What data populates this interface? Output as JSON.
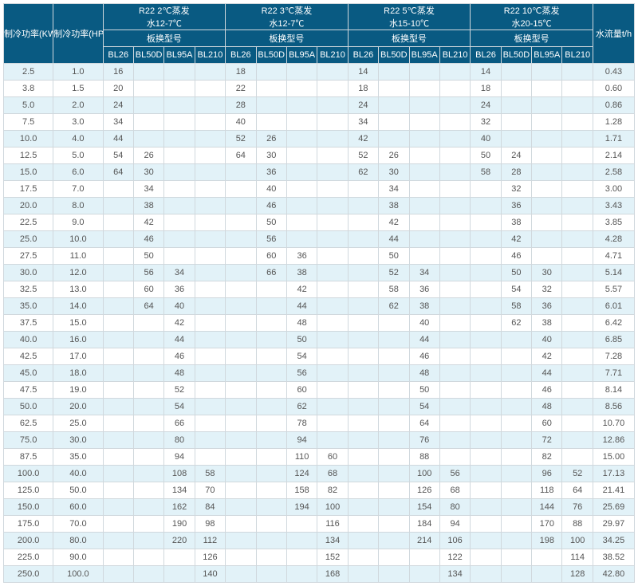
{
  "header": {
    "kw_label": "制冷功率(KW)",
    "hp_label": "制冷功率(HP)",
    "flow_label": "水流量t/h",
    "model_row_label": "板换型号",
    "groups": [
      {
        "line1": "R22 2℃蒸发",
        "line2": "水12-7℃"
      },
      {
        "line1": "R22 3℃蒸发",
        "line2": "水12-7℃"
      },
      {
        "line1": "R22 5℃蒸发",
        "line2": "水15-10℃"
      },
      {
        "line1": "R22 10℃蒸发",
        "line2": "水20-15℃"
      }
    ],
    "model_cols": [
      "BL26",
      "BL50D",
      "BL95A",
      "BL210"
    ]
  },
  "rows": [
    {
      "kw": "2.5",
      "hp": "1.0",
      "g": [
        [
          "16",
          "",
          "",
          ""
        ],
        [
          "18",
          "",
          "",
          ""
        ],
        [
          "14",
          "",
          "",
          ""
        ],
        [
          "14",
          "",
          "",
          ""
        ]
      ],
      "flow": "0.43"
    },
    {
      "kw": "3.8",
      "hp": "1.5",
      "g": [
        [
          "20",
          "",
          "",
          ""
        ],
        [
          "22",
          "",
          "",
          ""
        ],
        [
          "18",
          "",
          "",
          ""
        ],
        [
          "18",
          "",
          "",
          ""
        ]
      ],
      "flow": "0.60"
    },
    {
      "kw": "5.0",
      "hp": "2.0",
      "g": [
        [
          "24",
          "",
          "",
          ""
        ],
        [
          "28",
          "",
          "",
          ""
        ],
        [
          "24",
          "",
          "",
          ""
        ],
        [
          "24",
          "",
          "",
          ""
        ]
      ],
      "flow": "0.86"
    },
    {
      "kw": "7.5",
      "hp": "3.0",
      "g": [
        [
          "34",
          "",
          "",
          ""
        ],
        [
          "40",
          "",
          "",
          ""
        ],
        [
          "34",
          "",
          "",
          ""
        ],
        [
          "32",
          "",
          "",
          ""
        ]
      ],
      "flow": "1.28"
    },
    {
      "kw": "10.0",
      "hp": "4.0",
      "g": [
        [
          "44",
          "",
          "",
          ""
        ],
        [
          "52",
          "26",
          "",
          ""
        ],
        [
          "42",
          "",
          "",
          ""
        ],
        [
          "40",
          "",
          "",
          ""
        ]
      ],
      "flow": "1.71"
    },
    {
      "kw": "12.5",
      "hp": "5.0",
      "g": [
        [
          "54",
          "26",
          "",
          ""
        ],
        [
          "64",
          "30",
          "",
          ""
        ],
        [
          "52",
          "26",
          "",
          ""
        ],
        [
          "50",
          "24",
          "",
          ""
        ]
      ],
      "flow": "2.14"
    },
    {
      "kw": "15.0",
      "hp": "6.0",
      "g": [
        [
          "64",
          "30",
          "",
          ""
        ],
        [
          "",
          "36",
          "",
          ""
        ],
        [
          "62",
          "30",
          "",
          ""
        ],
        [
          "58",
          "28",
          "",
          ""
        ]
      ],
      "flow": "2.58"
    },
    {
      "kw": "17.5",
      "hp": "7.0",
      "g": [
        [
          "",
          "34",
          "",
          ""
        ],
        [
          "",
          "40",
          "",
          ""
        ],
        [
          "",
          "34",
          "",
          ""
        ],
        [
          "",
          "32",
          "",
          ""
        ]
      ],
      "flow": "3.00"
    },
    {
      "kw": "20.0",
      "hp": "8.0",
      "g": [
        [
          "",
          "38",
          "",
          ""
        ],
        [
          "",
          "46",
          "",
          ""
        ],
        [
          "",
          "38",
          "",
          ""
        ],
        [
          "",
          "36",
          "",
          ""
        ]
      ],
      "flow": "3.43"
    },
    {
      "kw": "22.5",
      "hp": "9.0",
      "g": [
        [
          "",
          "42",
          "",
          ""
        ],
        [
          "",
          "50",
          "",
          ""
        ],
        [
          "",
          "42",
          "",
          ""
        ],
        [
          "",
          "38",
          "",
          ""
        ]
      ],
      "flow": "3.85"
    },
    {
      "kw": "25.0",
      "hp": "10.0",
      "g": [
        [
          "",
          "46",
          "",
          ""
        ],
        [
          "",
          "56",
          "",
          ""
        ],
        [
          "",
          "44",
          "",
          ""
        ],
        [
          "",
          "42",
          "",
          ""
        ]
      ],
      "flow": "4.28"
    },
    {
      "kw": "27.5",
      "hp": "11.0",
      "g": [
        [
          "",
          "50",
          "",
          ""
        ],
        [
          "",
          "60",
          "36",
          ""
        ],
        [
          "",
          "50",
          "",
          ""
        ],
        [
          "",
          "46",
          "",
          ""
        ]
      ],
      "flow": "4.71"
    },
    {
      "kw": "30.0",
      "hp": "12.0",
      "g": [
        [
          "",
          "56",
          "34",
          ""
        ],
        [
          "",
          "66",
          "38",
          ""
        ],
        [
          "",
          "52",
          "34",
          ""
        ],
        [
          "",
          "50",
          "30",
          ""
        ]
      ],
      "flow": "5.14"
    },
    {
      "kw": "32.5",
      "hp": "13.0",
      "g": [
        [
          "",
          "60",
          "36",
          ""
        ],
        [
          "",
          "",
          "42",
          ""
        ],
        [
          "",
          "58",
          "36",
          ""
        ],
        [
          "",
          "54",
          "32",
          ""
        ]
      ],
      "flow": "5.57"
    },
    {
      "kw": "35.0",
      "hp": "14.0",
      "g": [
        [
          "",
          "64",
          "40",
          ""
        ],
        [
          "",
          "",
          "44",
          ""
        ],
        [
          "",
          "62",
          "38",
          ""
        ],
        [
          "",
          "58",
          "36",
          ""
        ]
      ],
      "flow": "6.01"
    },
    {
      "kw": "37.5",
      "hp": "15.0",
      "g": [
        [
          "",
          "",
          "42",
          ""
        ],
        [
          "",
          "",
          "48",
          ""
        ],
        [
          "",
          "",
          "40",
          ""
        ],
        [
          "",
          "62",
          "38",
          ""
        ]
      ],
      "flow": "6.42"
    },
    {
      "kw": "40.0",
      "hp": "16.0",
      "g": [
        [
          "",
          "",
          "44",
          ""
        ],
        [
          "",
          "",
          "50",
          ""
        ],
        [
          "",
          "",
          "44",
          ""
        ],
        [
          "",
          "",
          "40",
          ""
        ]
      ],
      "flow": "6.85"
    },
    {
      "kw": "42.5",
      "hp": "17.0",
      "g": [
        [
          "",
          "",
          "46",
          ""
        ],
        [
          "",
          "",
          "54",
          ""
        ],
        [
          "",
          "",
          "46",
          ""
        ],
        [
          "",
          "",
          "42",
          ""
        ]
      ],
      "flow": "7.28"
    },
    {
      "kw": "45.0",
      "hp": "18.0",
      "g": [
        [
          "",
          "",
          "48",
          ""
        ],
        [
          "",
          "",
          "56",
          ""
        ],
        [
          "",
          "",
          "48",
          ""
        ],
        [
          "",
          "",
          "44",
          ""
        ]
      ],
      "flow": "7.71"
    },
    {
      "kw": "47.5",
      "hp": "19.0",
      "g": [
        [
          "",
          "",
          "52",
          ""
        ],
        [
          "",
          "",
          "60",
          ""
        ],
        [
          "",
          "",
          "50",
          ""
        ],
        [
          "",
          "",
          "46",
          ""
        ]
      ],
      "flow": "8.14"
    },
    {
      "kw": "50.0",
      "hp": "20.0",
      "g": [
        [
          "",
          "",
          "54",
          ""
        ],
        [
          "",
          "",
          "62",
          ""
        ],
        [
          "",
          "",
          "54",
          ""
        ],
        [
          "",
          "",
          "48",
          ""
        ]
      ],
      "flow": "8.56"
    },
    {
      "kw": "62.5",
      "hp": "25.0",
      "g": [
        [
          "",
          "",
          "66",
          ""
        ],
        [
          "",
          "",
          "78",
          ""
        ],
        [
          "",
          "",
          "64",
          ""
        ],
        [
          "",
          "",
          "60",
          ""
        ]
      ],
      "flow": "10.70"
    },
    {
      "kw": "75.0",
      "hp": "30.0",
      "g": [
        [
          "",
          "",
          "80",
          ""
        ],
        [
          "",
          "",
          "94",
          ""
        ],
        [
          "",
          "",
          "76",
          ""
        ],
        [
          "",
          "",
          "72",
          ""
        ]
      ],
      "flow": "12.86"
    },
    {
      "kw": "87.5",
      "hp": "35.0",
      "g": [
        [
          "",
          "",
          "94",
          ""
        ],
        [
          "",
          "",
          "110",
          "60"
        ],
        [
          "",
          "",
          "88",
          ""
        ],
        [
          "",
          "",
          "82",
          ""
        ]
      ],
      "flow": "15.00"
    },
    {
      "kw": "100.0",
      "hp": "40.0",
      "g": [
        [
          "",
          "",
          "108",
          "58"
        ],
        [
          "",
          "",
          "124",
          "68"
        ],
        [
          "",
          "",
          "100",
          "56"
        ],
        [
          "",
          "",
          "96",
          "52"
        ]
      ],
      "flow": "17.13"
    },
    {
      "kw": "125.0",
      "hp": "50.0",
      "g": [
        [
          "",
          "",
          "134",
          "70"
        ],
        [
          "",
          "",
          "158",
          "82"
        ],
        [
          "",
          "",
          "126",
          "68"
        ],
        [
          "",
          "",
          "118",
          "64"
        ]
      ],
      "flow": "21.41"
    },
    {
      "kw": "150.0",
      "hp": "60.0",
      "g": [
        [
          "",
          "",
          "162",
          "84"
        ],
        [
          "",
          "",
          "194",
          "100"
        ],
        [
          "",
          "",
          "154",
          "80"
        ],
        [
          "",
          "",
          "144",
          "76"
        ]
      ],
      "flow": "25.69"
    },
    {
      "kw": "175.0",
      "hp": "70.0",
      "g": [
        [
          "",
          "",
          "190",
          "98"
        ],
        [
          "",
          "",
          "",
          "116"
        ],
        [
          "",
          "",
          "184",
          "94"
        ],
        [
          "",
          "",
          "170",
          "88"
        ]
      ],
      "flow": "29.97"
    },
    {
      "kw": "200.0",
      "hp": "80.0",
      "g": [
        [
          "",
          "",
          "220",
          "112"
        ],
        [
          "",
          "",
          "",
          "134"
        ],
        [
          "",
          "",
          "214",
          "106"
        ],
        [
          "",
          "",
          "198",
          "100"
        ]
      ],
      "flow": "34.25"
    },
    {
      "kw": "225.0",
      "hp": "90.0",
      "g": [
        [
          "",
          "",
          "",
          "126"
        ],
        [
          "",
          "",
          "",
          "152"
        ],
        [
          "",
          "",
          "",
          "122"
        ],
        [
          "",
          "",
          "",
          "114"
        ]
      ],
      "flow": "38.52"
    },
    {
      "kw": "250.0",
      "hp": "100.0",
      "g": [
        [
          "",
          "",
          "",
          "140"
        ],
        [
          "",
          "",
          "",
          "168"
        ],
        [
          "",
          "",
          "",
          "134"
        ],
        [
          "",
          "",
          "",
          "128"
        ]
      ],
      "flow": "42.80"
    }
  ]
}
